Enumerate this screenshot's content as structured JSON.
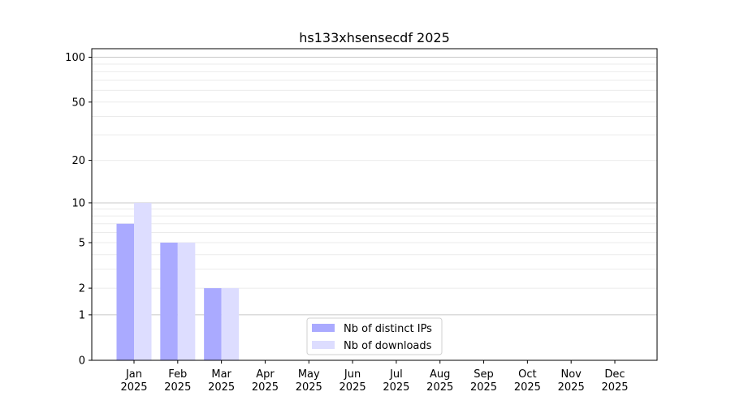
{
  "chart_data": {
    "type": "bar",
    "title": "hs133xhsensecdf 2025",
    "xlabel": "",
    "ylabel": "",
    "yscale": "log(1+y)",
    "ylim": [
      0,
      114
    ],
    "yticks": [
      0,
      1,
      2,
      5,
      10,
      20,
      50,
      100
    ],
    "grid": "horizontal",
    "legend_position": "bottom-center",
    "categories": [
      "Jan\n2025",
      "Feb\n2025",
      "Mar\n2025",
      "Apr\n2025",
      "May\n2025",
      "Jun\n2025",
      "Jul\n2025",
      "Aug\n2025",
      "Sep\n2025",
      "Oct\n2025",
      "Nov\n2025",
      "Dec\n2025"
    ],
    "series": [
      {
        "name": "Nb of distinct IPs",
        "color": "#aaaaff",
        "values": [
          7,
          5,
          2,
          0,
          0,
          0,
          0,
          0,
          0,
          0,
          0,
          0
        ]
      },
      {
        "name": "Nb of downloads",
        "color": "#ddddff",
        "values": [
          10,
          5,
          2,
          0,
          0,
          0,
          0,
          0,
          0,
          0,
          0,
          0
        ]
      }
    ]
  }
}
